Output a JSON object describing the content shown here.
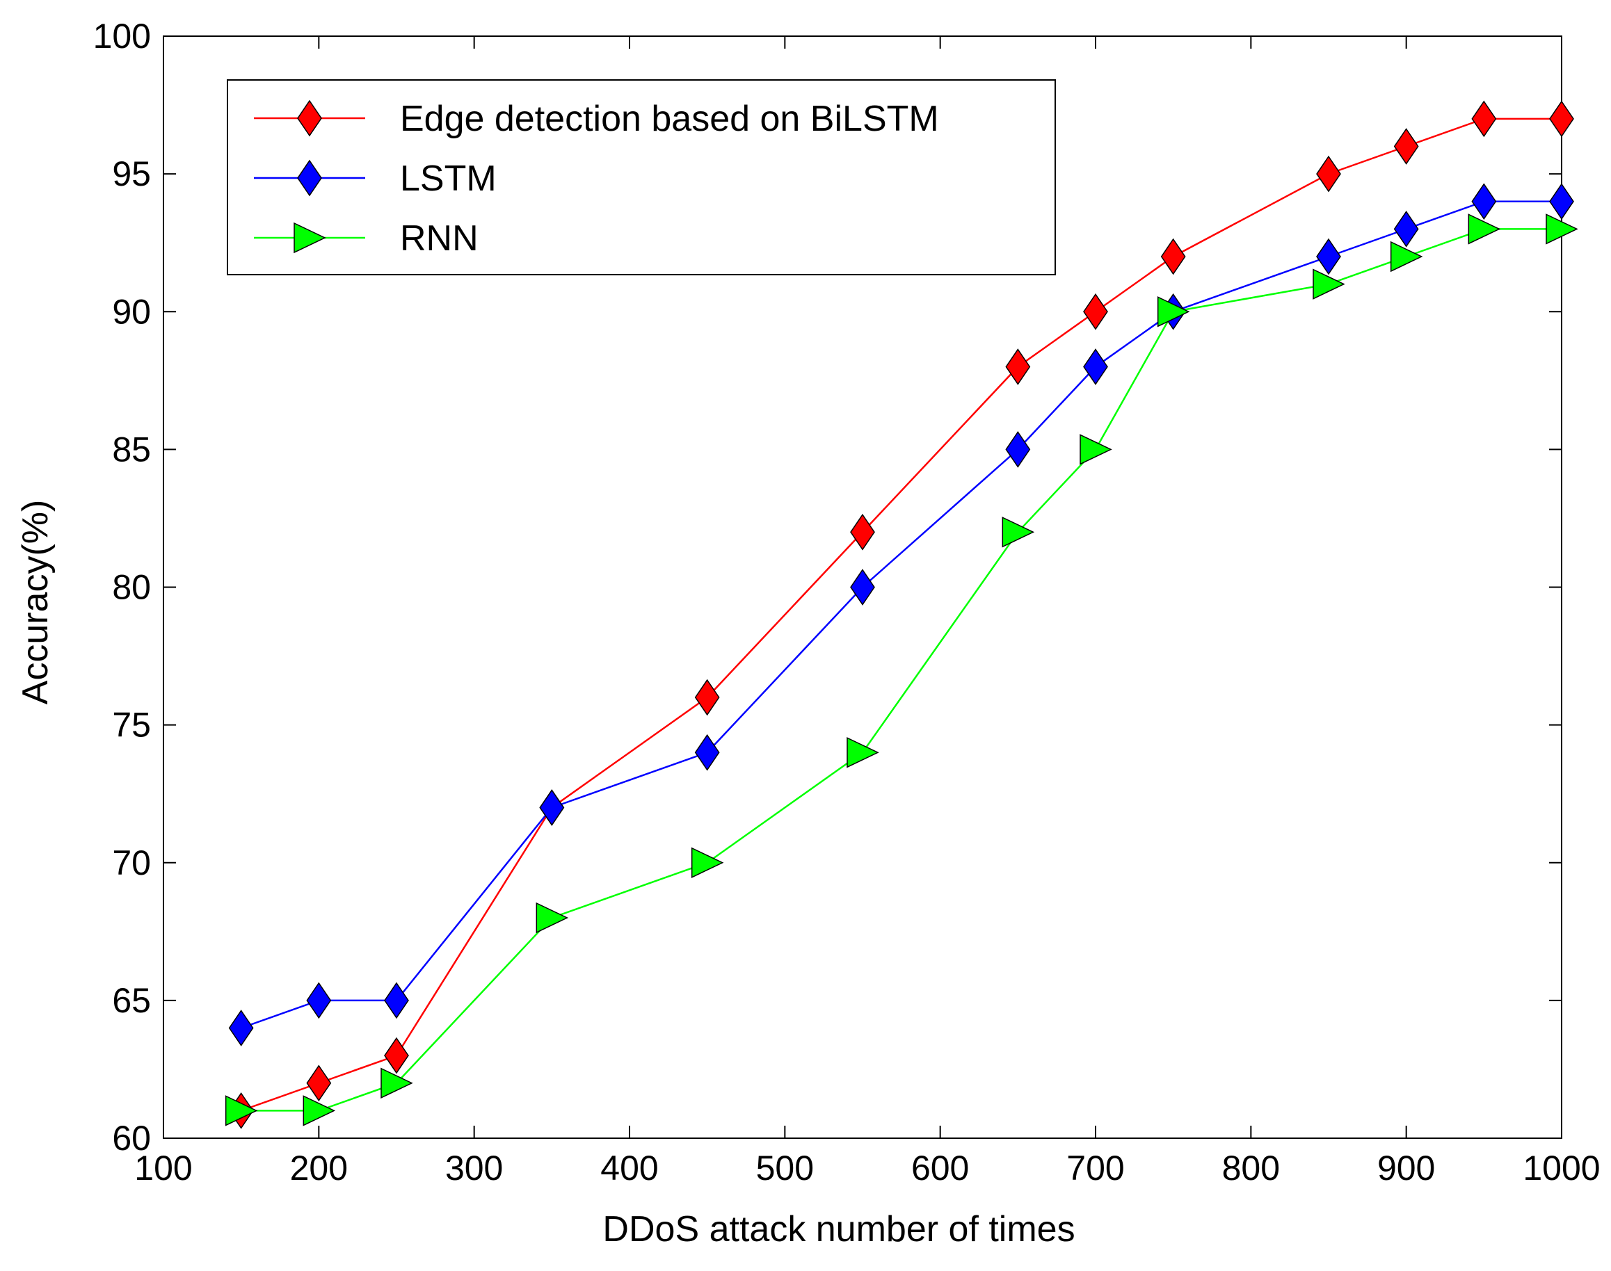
{
  "chart_data": {
    "type": "line",
    "title": "",
    "xlabel": "DDoS attack number of times",
    "ylabel": "Accuracy(%)",
    "xlim": [
      100,
      1000
    ],
    "ylim": [
      60,
      100
    ],
    "xticks": [
      100,
      200,
      300,
      400,
      500,
      600,
      700,
      800,
      900,
      1000
    ],
    "yticks": [
      60,
      65,
      70,
      75,
      80,
      85,
      90,
      95,
      100
    ],
    "grid": false,
    "legend_position": "top-left",
    "series": [
      {
        "name": "Edge detection based on BiLSTM",
        "color": "#ff0000",
        "marker": "diamond",
        "x": [
          150,
          200,
          250,
          350,
          450,
          550,
          650,
          700,
          750,
          850,
          900,
          950,
          1000
        ],
        "y": [
          61,
          62,
          63,
          72,
          76,
          82,
          88,
          90,
          92,
          95,
          96,
          97,
          97
        ]
      },
      {
        "name": "LSTM",
        "color": "#0000ff",
        "marker": "diamond",
        "x": [
          150,
          200,
          250,
          350,
          450,
          550,
          650,
          700,
          750,
          850,
          900,
          950,
          1000
        ],
        "y": [
          64,
          65,
          65,
          72,
          74,
          80,
          85,
          88,
          90,
          92,
          93,
          94,
          94
        ]
      },
      {
        "name": "RNN",
        "color": "#00ff00",
        "marker": "triangle-right",
        "x": [
          150,
          200,
          250,
          350,
          450,
          550,
          650,
          700,
          750,
          850,
          900,
          950,
          1000
        ],
        "y": [
          61,
          61,
          62,
          68,
          70,
          74,
          82,
          85,
          90,
          91,
          92,
          93,
          93
        ]
      }
    ]
  }
}
